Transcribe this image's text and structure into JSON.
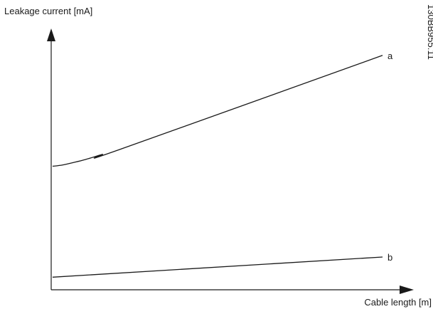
{
  "chart_data": {
    "type": "line",
    "title": "",
    "xlabel": "Cable length [m]",
    "ylabel": "Leakage current [mA]",
    "figure_id": "130BB955.11",
    "x_ticks": false,
    "y_ticks": false,
    "grid": false,
    "legend": "none",
    "xlim": [
      0,
      100
    ],
    "ylim": [
      0,
      100
    ],
    "series": [
      {
        "name": "a",
        "x": [
          0,
          3,
          6,
          10,
          15,
          20,
          100
        ],
        "y": [
          49,
          49.5,
          50.4,
          51.7,
          53.7,
          55.5,
          93
        ]
      },
      {
        "name": "b",
        "x": [
          0,
          100
        ],
        "y": [
          5,
          13
        ]
      }
    ]
  }
}
